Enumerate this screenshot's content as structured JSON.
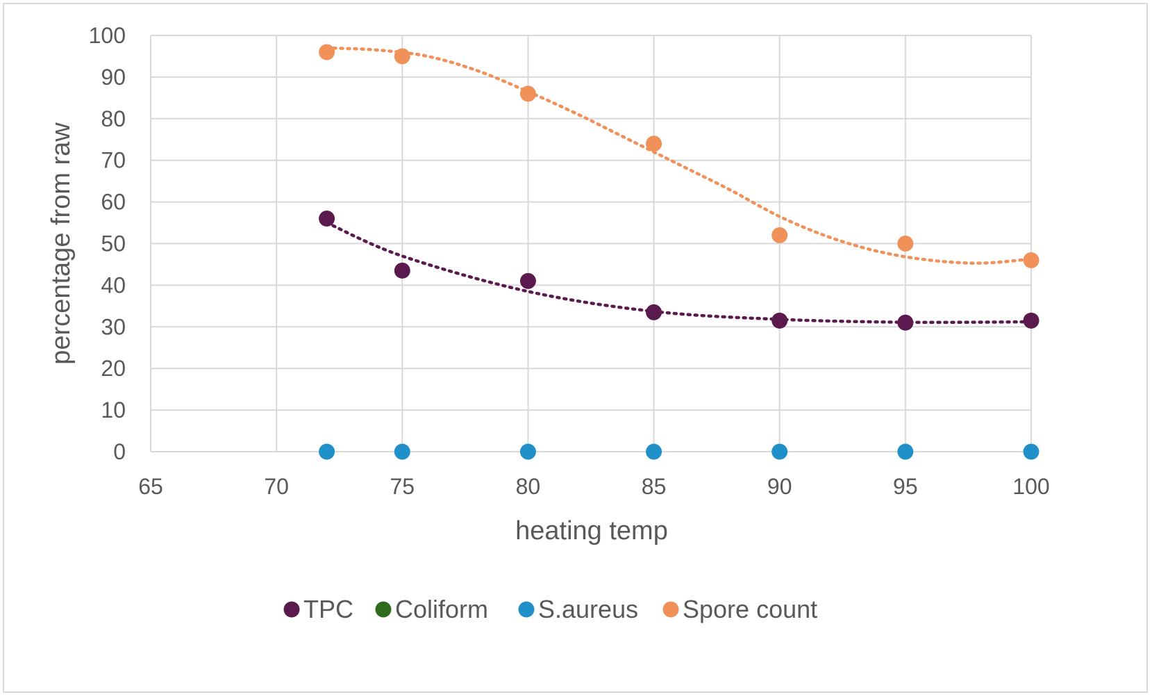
{
  "chart_data": {
    "type": "scatter",
    "xlabel": "heating temp",
    "ylabel": "percentage from raw",
    "xlim": [
      65,
      100
    ],
    "ylim": [
      0,
      100
    ],
    "xticks": [
      65,
      70,
      75,
      80,
      85,
      90,
      95,
      100
    ],
    "yticks": [
      0,
      10,
      20,
      30,
      40,
      50,
      60,
      70,
      80,
      90,
      100
    ],
    "grid": true,
    "legend_position": "bottom",
    "trendline": "polynomial, dotted",
    "series": [
      {
        "name": "TPC",
        "color": "#5b1a4e",
        "x": [
          72,
          75,
          80,
          85,
          90,
          95,
          100
        ],
        "y": [
          56,
          43.5,
          41,
          33.5,
          31.5,
          31,
          31.5
        ],
        "trend": [
          [
            72,
            55
          ],
          [
            75,
            47
          ],
          [
            80,
            38.5
          ],
          [
            85,
            33.7
          ],
          [
            90,
            31.8
          ],
          [
            95,
            31.1
          ],
          [
            100,
            31.2
          ]
        ]
      },
      {
        "name": "Coliform",
        "color": "#2e6b1f",
        "x": [],
        "y": [],
        "trend": []
      },
      {
        "name": "S.aureus",
        "color": "#1f91c8",
        "x": [
          72,
          75,
          80,
          85,
          90,
          95,
          100
        ],
        "y": [
          0,
          0,
          0,
          0,
          0,
          0,
          0
        ],
        "trend": []
      },
      {
        "name": "Spore count",
        "color": "#f0915a",
        "x": [
          72,
          75,
          80,
          85,
          90,
          95,
          100
        ],
        "y": [
          96,
          95,
          86,
          74,
          52,
          50,
          46
        ],
        "trend": [
          [
            72,
            97
          ],
          [
            74,
            96.5
          ],
          [
            76,
            95
          ],
          [
            78,
            91.5
          ],
          [
            80,
            86.5
          ],
          [
            82,
            81
          ],
          [
            84,
            75
          ],
          [
            86,
            69
          ],
          [
            88,
            63
          ],
          [
            90,
            56.5
          ],
          [
            92,
            51.5
          ],
          [
            94,
            48
          ],
          [
            96,
            46
          ],
          [
            98,
            45.3
          ],
          [
            100,
            46.3
          ]
        ]
      }
    ]
  }
}
